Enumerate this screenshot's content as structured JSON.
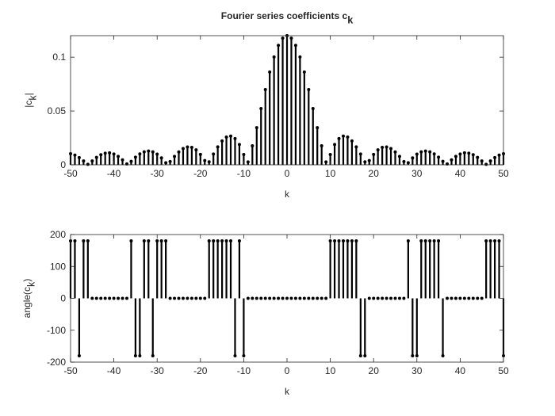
{
  "chart_data": [
    {
      "type": "stem",
      "title": {
        "text": "Fourier series coefficients c",
        "sub": "k"
      },
      "xlabel": "k",
      "ylabel": {
        "text": "|c",
        "sub": "k",
        "after": "|"
      },
      "color": "#000000",
      "x": [
        -50,
        -49,
        -48,
        -47,
        -46,
        -45,
        -44,
        -43,
        -42,
        -41,
        -40,
        -39,
        -38,
        -37,
        -36,
        -35,
        -34,
        -33,
        -32,
        -31,
        -30,
        -29,
        -28,
        -27,
        -26,
        -25,
        -24,
        -23,
        -22,
        -21,
        -20,
        -19,
        -18,
        -17,
        -16,
        -15,
        -14,
        -13,
        -12,
        -11,
        -10,
        -9,
        -8,
        -7,
        -6,
        -5,
        -4,
        -3,
        -2,
        -1,
        0,
        1,
        2,
        3,
        4,
        5,
        6,
        7,
        8,
        9,
        10,
        11,
        12,
        13,
        14,
        15,
        16,
        17,
        18,
        19,
        20,
        21,
        22,
        23,
        24,
        25,
        26,
        27,
        28,
        29,
        30,
        31,
        32,
        33,
        34,
        35,
        36,
        37,
        38,
        39,
        40,
        41,
        42,
        43,
        44,
        45,
        46,
        47,
        48,
        49,
        50
      ],
      "values": [
        0.0103,
        0.009,
        0.0067,
        0.0036,
        0.0005,
        0.0036,
        0.0069,
        0.0094,
        0.0108,
        0.0111,
        0.01,
        0.0078,
        0.0046,
        0.0008,
        0.0032,
        0.0071,
        0.0101,
        0.0121,
        0.0128,
        0.0121,
        0.0099,
        0.0064,
        0.0019,
        0.003,
        0.0078,
        0.012,
        0.0151,
        0.0166,
        0.0162,
        0.0139,
        0.0097,
        0.004,
        0.0028,
        0.01,
        0.0167,
        0.0222,
        0.0258,
        0.0267,
        0.0244,
        0.0189,
        0.0096,
        0.0027,
        0.0177,
        0.0345,
        0.0523,
        0.0699,
        0.0862,
        0.1002,
        0.111,
        0.1177,
        0.12,
        0.1177,
        0.111,
        0.1002,
        0.0862,
        0.0699,
        0.0523,
        0.0345,
        0.0177,
        0.0027,
        0.0096,
        0.0189,
        0.0244,
        0.0267,
        0.0258,
        0.0222,
        0.0167,
        0.01,
        0.0028,
        0.004,
        0.0097,
        0.0139,
        0.0162,
        0.0166,
        0.0151,
        0.012,
        0.0078,
        0.003,
        0.0019,
        0.0064,
        0.0099,
        0.0121,
        0.0128,
        0.0121,
        0.0101,
        0.0071,
        0.0032,
        0.0008,
        0.0046,
        0.0078,
        0.01,
        0.0111,
        0.0108,
        0.0094,
        0.0069,
        0.0036,
        0.0005,
        0.0036,
        0.0067,
        0.009,
        0.0103
      ],
      "xlim": [
        -50,
        50
      ],
      "xticks": [
        -50,
        -40,
        -30,
        -20,
        -10,
        0,
        10,
        20,
        30,
        40,
        50
      ],
      "ylim": [
        0,
        0.12
      ],
      "yticks": [
        0,
        0.05,
        0.1
      ]
    },
    {
      "type": "stem",
      "xlabel": "k",
      "ylabel": {
        "text": "angle(c",
        "sub": "k",
        "after": ")"
      },
      "color": "#000000",
      "x": [
        -50,
        -49,
        -48,
        -47,
        -46,
        -45,
        -44,
        -43,
        -42,
        -41,
        -40,
        -39,
        -38,
        -37,
        -36,
        -35,
        -34,
        -33,
        -32,
        -31,
        -30,
        -29,
        -28,
        -27,
        -26,
        -25,
        -24,
        -23,
        -22,
        -21,
        -20,
        -19,
        -18,
        -17,
        -16,
        -15,
        -14,
        -13,
        -12,
        -11,
        -10,
        -9,
        -8,
        -7,
        -6,
        -5,
        -4,
        -3,
        -2,
        -1,
        0,
        1,
        2,
        3,
        4,
        5,
        6,
        7,
        8,
        9,
        10,
        11,
        12,
        13,
        14,
        15,
        16,
        17,
        18,
        19,
        20,
        21,
        22,
        23,
        24,
        25,
        26,
        27,
        28,
        29,
        30,
        31,
        32,
        33,
        34,
        35,
        36,
        37,
        38,
        39,
        40,
        41,
        42,
        43,
        44,
        45,
        46,
        47,
        48,
        49,
        50
      ],
      "values": [
        180,
        180,
        -180,
        180,
        180,
        0,
        0,
        0,
        0,
        0,
        0,
        0,
        0,
        0,
        180,
        -180,
        -180,
        180,
        180,
        -180,
        180,
        180,
        180,
        0,
        0,
        0,
        0,
        0,
        0,
        0,
        0,
        0,
        180,
        180,
        180,
        180,
        180,
        180,
        -180,
        180,
        -180,
        0,
        0,
        0,
        0,
        0,
        0,
        0,
        0,
        0,
        0,
        0,
        0,
        0,
        0,
        0,
        0,
        0,
        0,
        0,
        180,
        180,
        180,
        180,
        180,
        180,
        180,
        -180,
        -180,
        0,
        0,
        0,
        0,
        0,
        0,
        0,
        0,
        0,
        180,
        -180,
        -180,
        180,
        180,
        180,
        180,
        180,
        -180,
        0,
        0,
        0,
        0,
        0,
        0,
        0,
        0,
        0,
        180,
        180,
        180,
        180,
        -180
      ],
      "xlim": [
        -50,
        50
      ],
      "xticks": [
        -50,
        -40,
        -30,
        -20,
        -10,
        0,
        10,
        20,
        30,
        40,
        50
      ],
      "ylim": [
        -200,
        200
      ],
      "yticks": [
        -200,
        -100,
        0,
        100,
        200
      ]
    }
  ]
}
